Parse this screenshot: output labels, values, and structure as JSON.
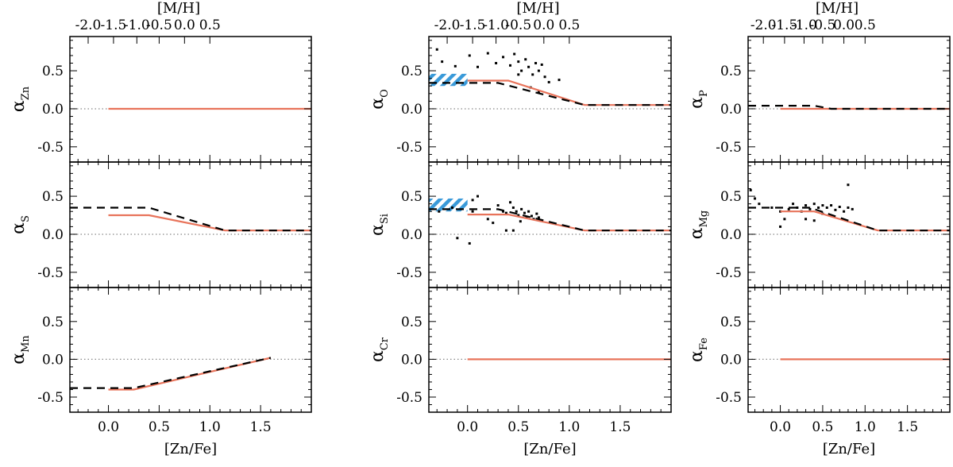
{
  "figure": {
    "top_axis_label": "[M/H]",
    "bottom_axis_label": "[Zn/Fe]",
    "x_ticks": [
      "0.0",
      "0.5",
      "1.0",
      "1.5"
    ],
    "top_ticks": [
      "-2.0",
      "-1.5",
      "-1.0",
      "-0.5",
      "0.0",
      "0.5"
    ],
    "y_ticks": [
      "0.5",
      "0.0",
      "-0.5"
    ],
    "colors": {
      "model": "#e8735a",
      "fit": "#000000",
      "band": "#3a9ad9",
      "zero": "#888888"
    }
  },
  "chart_data": {
    "type": "line",
    "layout": "3x3 small multiples sharing axes",
    "xlabel": "[Zn/Fe]",
    "x2label": "[M/H]",
    "xlim": [
      -0.38,
      2.0
    ],
    "x_ticks": [
      0.0,
      0.5,
      1.0,
      1.5
    ],
    "x2_tick_values": [
      -2.0,
      -1.5,
      -1.0,
      -0.5,
      0.0,
      0.5
    ],
    "x2_tick_positions_zn": [
      -0.2,
      0.05,
      0.28,
      0.5,
      0.75,
      1.0
    ],
    "ylim": [
      -0.7,
      0.95
    ],
    "y_ticks": [
      0.5,
      0.0,
      -0.5
    ],
    "zero_line": {
      "style": "dotted",
      "y": 0.0
    },
    "panels": [
      {
        "id": "Zn",
        "main": "α",
        "sub": "Zn",
        "has_top_axis": true,
        "solid": [
          [
            0.0,
            0.0
          ],
          [
            2.0,
            0.0
          ]
        ],
        "dashed": [],
        "band": null,
        "points": []
      },
      {
        "id": "O",
        "main": "α",
        "sub": "O",
        "has_top_axis": true,
        "solid": [
          [
            0.0,
            0.37
          ],
          [
            0.4,
            0.37
          ],
          [
            1.15,
            0.05
          ],
          [
            2.0,
            0.05
          ]
        ],
        "dashed": [
          [
            -0.38,
            0.34
          ],
          [
            0.3,
            0.34
          ],
          [
            1.15,
            0.05
          ],
          [
            2.0,
            0.05
          ]
        ],
        "band": {
          "x": [
            -0.38,
            0.0
          ],
          "y": [
            0.3,
            0.46
          ]
        },
        "points": [
          [
            -0.3,
            0.78
          ],
          [
            -0.25,
            0.62
          ],
          [
            -0.12,
            0.56
          ],
          [
            0.02,
            0.7
          ],
          [
            0.1,
            0.55
          ],
          [
            0.2,
            0.73
          ],
          [
            0.28,
            0.6
          ],
          [
            0.35,
            0.68
          ],
          [
            0.42,
            0.57
          ],
          [
            0.46,
            0.72
          ],
          [
            0.5,
            0.62
          ],
          [
            0.53,
            0.5
          ],
          [
            0.57,
            0.65
          ],
          [
            0.6,
            0.55
          ],
          [
            0.64,
            0.45
          ],
          [
            0.67,
            0.6
          ],
          [
            0.7,
            0.5
          ],
          [
            0.73,
            0.58
          ],
          [
            0.76,
            0.42
          ],
          [
            0.8,
            0.35
          ],
          [
            0.62,
            0.28
          ],
          [
            0.7,
            0.22
          ],
          [
            0.5,
            0.45
          ],
          [
            0.9,
            0.38
          ]
        ]
      },
      {
        "id": "P",
        "main": "α",
        "sub": "P",
        "has_top_axis": true,
        "solid": [
          [
            0.0,
            0.0
          ],
          [
            2.0,
            0.0
          ]
        ],
        "dashed": [
          [
            -0.38,
            0.04
          ],
          [
            0.4,
            0.04
          ],
          [
            0.6,
            0.0
          ],
          [
            2.0,
            0.0
          ]
        ],
        "band": null,
        "points": []
      },
      {
        "id": "S",
        "main": "α",
        "sub": "S",
        "has_top_axis": false,
        "solid": [
          [
            0.0,
            0.25
          ],
          [
            0.4,
            0.25
          ],
          [
            1.15,
            0.05
          ],
          [
            2.0,
            0.05
          ]
        ],
        "dashed": [
          [
            -0.38,
            0.35
          ],
          [
            0.4,
            0.35
          ],
          [
            1.15,
            0.05
          ],
          [
            2.0,
            0.05
          ]
        ],
        "band": null,
        "points": []
      },
      {
        "id": "Si",
        "main": "α",
        "sub": "Si",
        "has_top_axis": false,
        "solid": [
          [
            0.0,
            0.26
          ],
          [
            0.4,
            0.26
          ],
          [
            1.15,
            0.05
          ],
          [
            2.0,
            0.05
          ]
        ],
        "dashed": [
          [
            -0.38,
            0.33
          ],
          [
            0.3,
            0.33
          ],
          [
            1.15,
            0.05
          ],
          [
            2.0,
            0.05
          ]
        ],
        "band": {
          "x": [
            -0.38,
            0.0
          ],
          "y": [
            0.3,
            0.47
          ]
        },
        "points": [
          [
            -0.28,
            0.3
          ],
          [
            -0.15,
            0.35
          ],
          [
            0.05,
            0.3
          ],
          [
            -0.1,
            -0.05
          ],
          [
            0.02,
            -0.12
          ],
          [
            0.05,
            0.45
          ],
          [
            0.2,
            0.2
          ],
          [
            0.25,
            0.15
          ],
          [
            0.3,
            0.38
          ],
          [
            0.35,
            0.3
          ],
          [
            0.38,
            0.28
          ],
          [
            0.42,
            0.42
          ],
          [
            0.45,
            0.35
          ],
          [
            0.48,
            0.3
          ],
          [
            0.5,
            0.25
          ],
          [
            0.53,
            0.33
          ],
          [
            0.56,
            0.28
          ],
          [
            0.58,
            0.22
          ],
          [
            0.6,
            0.3
          ],
          [
            0.63,
            0.24
          ],
          [
            0.65,
            0.2
          ],
          [
            0.68,
            0.27
          ],
          [
            0.7,
            0.22
          ],
          [
            0.72,
            0.18
          ],
          [
            0.45,
            0.05
          ],
          [
            0.38,
            0.05
          ],
          [
            0.1,
            0.5
          ],
          [
            0.52,
            0.17
          ]
        ]
      },
      {
        "id": "Mg",
        "main": "α",
        "sub": "Mg",
        "has_top_axis": false,
        "solid": [
          [
            0.0,
            0.3
          ],
          [
            0.4,
            0.3
          ],
          [
            1.15,
            0.05
          ],
          [
            2.0,
            0.05
          ]
        ],
        "dashed": [
          [
            -0.38,
            0.35
          ],
          [
            0.35,
            0.35
          ],
          [
            1.15,
            0.05
          ],
          [
            2.0,
            0.05
          ]
        ],
        "band": null,
        "points": [
          [
            -0.35,
            0.58
          ],
          [
            -0.3,
            0.47
          ],
          [
            -0.25,
            0.4
          ],
          [
            -0.1,
            0.35
          ],
          [
            0.0,
            0.3
          ],
          [
            0.05,
            0.2
          ],
          [
            0.1,
            0.33
          ],
          [
            0.15,
            0.4
          ],
          [
            0.2,
            0.35
          ],
          [
            0.25,
            0.3
          ],
          [
            0.3,
            0.38
          ],
          [
            0.35,
            0.33
          ],
          [
            0.4,
            0.4
          ],
          [
            0.45,
            0.35
          ],
          [
            0.5,
            0.38
          ],
          [
            0.55,
            0.35
          ],
          [
            0.6,
            0.38
          ],
          [
            0.65,
            0.32
          ],
          [
            0.7,
            0.36
          ],
          [
            0.75,
            0.3
          ],
          [
            0.8,
            0.35
          ],
          [
            0.85,
            0.33
          ],
          [
            0.3,
            0.2
          ],
          [
            0.4,
            0.18
          ],
          [
            0.8,
            0.65
          ],
          [
            0.0,
            0.1
          ],
          [
            0.5,
            0.27
          ]
        ]
      },
      {
        "id": "Mn",
        "main": "α",
        "sub": "Mn",
        "has_top_axis": false,
        "solid": [
          [
            0.0,
            -0.4
          ],
          [
            0.25,
            -0.4
          ],
          [
            1.6,
            0.02
          ]
        ],
        "dashed": [
          [
            -0.38,
            -0.38
          ],
          [
            0.25,
            -0.38
          ],
          [
            1.6,
            0.02
          ]
        ],
        "band": null,
        "points": []
      },
      {
        "id": "Cr",
        "main": "α",
        "sub": "Cr",
        "has_top_axis": false,
        "solid": [
          [
            0.0,
            0.0
          ],
          [
            2.0,
            0.0
          ]
        ],
        "dashed": [],
        "band": null,
        "points": []
      },
      {
        "id": "Fe",
        "main": "α",
        "sub": "Fe",
        "has_top_axis": false,
        "solid": [
          [
            0.0,
            0.0
          ],
          [
            2.0,
            0.0
          ]
        ],
        "dashed": [],
        "band": null,
        "points": []
      }
    ]
  }
}
